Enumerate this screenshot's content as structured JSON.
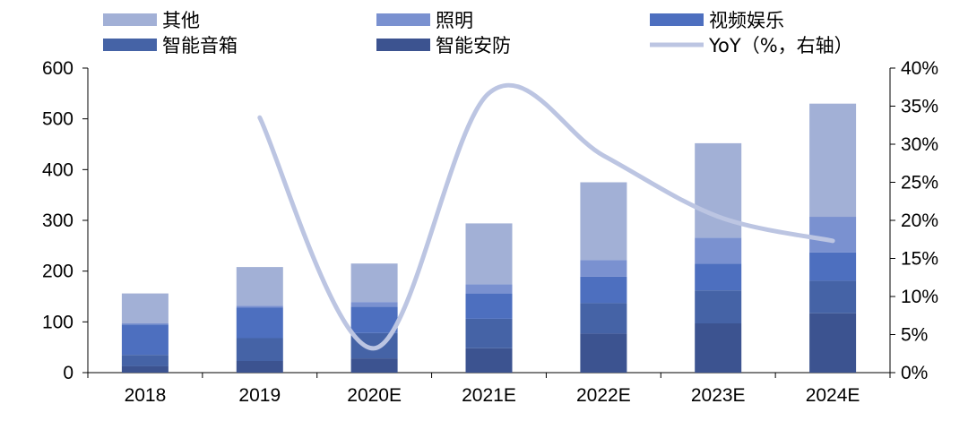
{
  "chart_data": {
    "type": "bar",
    "stacked": true,
    "categories": [
      "2018",
      "2019",
      "2020E",
      "2021E",
      "2022E",
      "2023E",
      "2024E"
    ],
    "series": [
      {
        "name": "智能安防",
        "values": [
          13,
          23,
          28,
          48,
          77,
          97,
          117
        ],
        "color": "#3c5390"
      },
      {
        "name": "智能音箱",
        "values": [
          22,
          45,
          50,
          58,
          60,
          65,
          64
        ],
        "color": "#4563a6"
      },
      {
        "name": "视频娱乐",
        "values": [
          60,
          60,
          52,
          50,
          52,
          53,
          56
        ],
        "color": "#4d6fbf"
      },
      {
        "name": "照明",
        "values": [
          2,
          4,
          9,
          18,
          33,
          51,
          70
        ],
        "color": "#7a91d0"
      },
      {
        "name": "其他",
        "values": [
          59,
          76,
          76,
          120,
          153,
          186,
          223
        ],
        "color": "#a2b0d6"
      }
    ],
    "line": {
      "name": "YoY（%，右轴）",
      "axis": "right",
      "color": "#bcc5e2",
      "values": [
        null,
        33.5,
        3.2,
        36.7,
        28.5,
        20.5,
        17.3
      ]
    },
    "y_left": {
      "min": 0,
      "max": 600,
      "ticks": [
        "0",
        "100",
        "200",
        "300",
        "400",
        "500",
        "600"
      ]
    },
    "y_right": {
      "min": 0,
      "max": 40,
      "ticks": [
        "0%",
        "5%",
        "10%",
        "15%",
        "20%",
        "25%",
        "30%",
        "35%",
        "40%"
      ]
    },
    "grid": false,
    "legend_position": "top"
  },
  "legend": [
    {
      "label": "其他",
      "kind": "rect",
      "color": "#a2b0d6"
    },
    {
      "label": "照明",
      "kind": "rect",
      "color": "#7a91d0"
    },
    {
      "label": "视频娱乐",
      "kind": "rect",
      "color": "#4d6fbf"
    },
    {
      "label": "智能音箱",
      "kind": "rect",
      "color": "#4563a6"
    },
    {
      "label": "智能安防",
      "kind": "rect",
      "color": "#3c5390"
    },
    {
      "label": "YoY（%，右轴）",
      "kind": "line",
      "color": "#bcc5e2"
    }
  ]
}
